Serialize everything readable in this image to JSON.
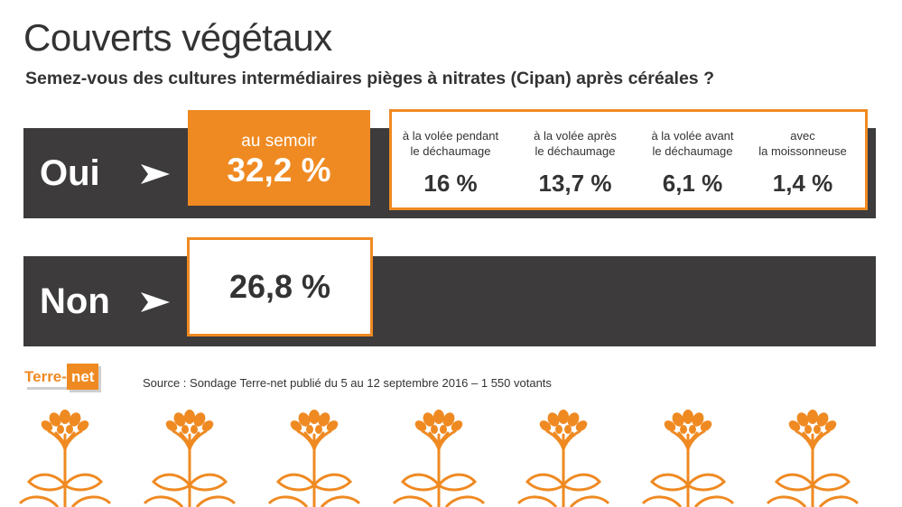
{
  "title": "Couverts végétaux",
  "subtitle": "Semez-vous des cultures intermédiaires pièges à nitrates (Cipan) après céréales ?",
  "colors": {
    "accent": "#ef8a22",
    "bar": "#3d3b3c",
    "text": "#333333"
  },
  "chart_data": {
    "type": "table",
    "rows": [
      {
        "label": "Oui",
        "main": {
          "label": "au semoir",
          "value": 32.2,
          "display": "32,2 %"
        },
        "details": [
          {
            "label": "à la volée pendant\nle déchaumage",
            "value": 16,
            "display": "16 %"
          },
          {
            "label": "à la volée après\nle déchaumage",
            "value": 13.7,
            "display": "13,7 %"
          },
          {
            "label": "à la volée avant\nle déchaumage",
            "value": 6.1,
            "display": "6,1 %"
          },
          {
            "label": "avec\nla moissonneuse",
            "value": 1.4,
            "display": "1,4 %"
          }
        ]
      },
      {
        "label": "Non",
        "main": {
          "value": 26.8,
          "display": "26,8 %"
        }
      }
    ]
  },
  "footer": {
    "logo_part1": "Terre-",
    "logo_part2": "net",
    "source": "Source : Sondage Terre-net publié du 5 au 12 septembre 2016 – 1 550 votants"
  },
  "icons": {
    "arrow": "arrow-right-icon",
    "plant": "plant-icon"
  }
}
